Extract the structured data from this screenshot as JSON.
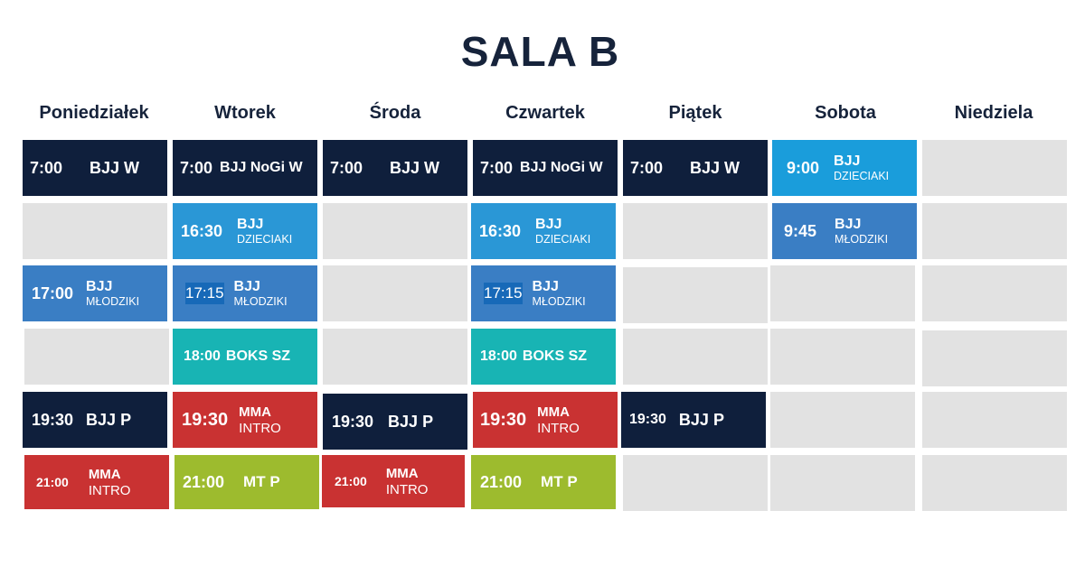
{
  "title": "SALA B",
  "days": [
    "Poniedziałek",
    "Wtorek",
    "Środa",
    "Czwartek",
    "Piątek",
    "Sobota",
    "Niedziela"
  ],
  "classes": {
    "mon_1": {
      "time": "7:00",
      "name": "BJJ W"
    },
    "mon_3": {
      "time": "17:00",
      "name": "BJJ",
      "sub": "MŁODZIKI"
    },
    "mon_5": {
      "time": "19:30",
      "name": "BJJ P"
    },
    "mon_6": {
      "time": "21:00",
      "name": "MMA",
      "sub": "INTRO"
    },
    "tue_1": {
      "time": "7:00",
      "name": "BJJ NoGi W"
    },
    "tue_2": {
      "time": "16:30",
      "name": "BJJ",
      "sub": "DZIECIAKI"
    },
    "tue_3": {
      "time": "17:15",
      "name": "BJJ",
      "sub": "MŁODZIKI"
    },
    "tue_4": {
      "time": "18:00",
      "name": "BOKS SZ"
    },
    "tue_5": {
      "time": "19:30",
      "name": "MMA",
      "sub": "INTRO"
    },
    "tue_6": {
      "time": "21:00",
      "name": "MT P"
    },
    "wed_1": {
      "time": "7:00",
      "name": "BJJ W"
    },
    "wed_5": {
      "time": "19:30",
      "name": "BJJ P"
    },
    "wed_6": {
      "time": "21:00",
      "name": "MMA",
      "sub": "INTRO"
    },
    "thu_1": {
      "time": "7:00",
      "name": "BJJ NoGi W"
    },
    "thu_2": {
      "time": "16:30",
      "name": "BJJ",
      "sub": "DZIECIAKI"
    },
    "thu_3": {
      "time": "17:15",
      "name": "BJJ",
      "sub": "MŁODZIKI"
    },
    "thu_4": {
      "time": "18:00",
      "name": "BOKS SZ"
    },
    "thu_5": {
      "time": "19:30",
      "name": "MMA",
      "sub": "INTRO"
    },
    "thu_6": {
      "time": "21:00",
      "name": "MT P"
    },
    "fri_1": {
      "time": "7:00",
      "name": "BJJ W"
    },
    "fri_5": {
      "time": "19:30",
      "name": "BJJ P"
    },
    "sat_1": {
      "time": "9:00",
      "name": "BJJ",
      "sub": "DZIECIAKI"
    },
    "sat_2": {
      "time": "9:45",
      "name": "BJJ",
      "sub": "MŁODZIKI"
    }
  },
  "colors": {
    "navy": "#0f1f3c",
    "sky": "#1a9ddb",
    "blue": "#3a7ec4",
    "teal": "#18b4b4",
    "red": "#c93232",
    "olive": "#9dbb2e",
    "empty": "#e2e2e2",
    "title": "#16233b"
  }
}
